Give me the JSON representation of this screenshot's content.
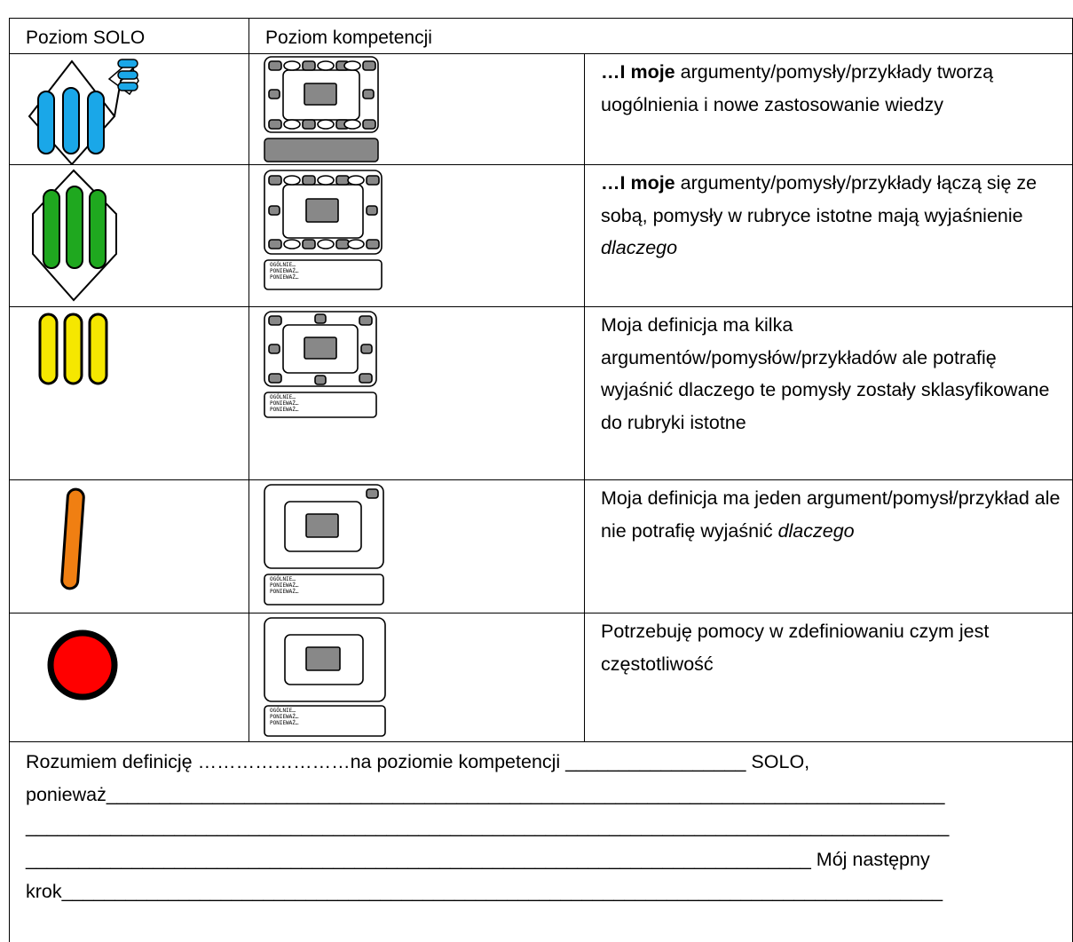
{
  "header": {
    "solo_level": "Poziom SOLO",
    "competence_level": "Poziom kompetencji"
  },
  "rows": [
    {
      "description": [
        "…I moje",
        " argumenty/pomysły/przykłady tworzą uogólnienia i nowe zastosowanie wiedzy"
      ]
    },
    {
      "description": [
        "…I moje",
        " argumenty/pomysły/przykłady łączą się ze sobą, pomysły w rubryce istotne mają wyjaśnienie ",
        "dlaczego"
      ],
      "sketch_notes": [
        "OGÓLNIE…",
        "PONIEWAŻ…",
        "PONIEWAŻ…"
      ]
    },
    {
      "description": [
        "Moja definicja ma kilka argumentów/pomysłów/przykładów ale potrafię wyjaśnić dlaczego te pomysły zostały sklasyfikowane do rubryki istotne"
      ],
      "sketch_notes": [
        "OGÓLNIE…",
        "PONIEWAŻ…",
        "PONIEWAŻ…"
      ]
    },
    {
      "description": [
        "Moja definicja ma jeden argument/pomysł/przykład ale nie potrafię wyjaśnić ",
        "dlaczego"
      ],
      "sketch_notes": [
        "OGÓLNIE…",
        "PONIEWAŻ…",
        "PONIEWAŻ…"
      ]
    },
    {
      "description": [
        "Potrzebuję pomocy w zdefiniowaniu czym jest częstotliwość"
      ],
      "sketch_notes": [
        "OGÓLNIE…",
        "PONIEWAŻ…",
        "PONIEWAŻ…"
      ]
    }
  ],
  "footer": {
    "lines": [
      "Rozumiem definicję ……………………na poziomie kompetencji _________________ SOLO,",
      "ponieważ_______________________________________________________________________________",
      "_______________________________________________________________________________________",
      "__________________________________________________________________________ Mój następny",
      "krok___________________________________________________________________________________"
    ]
  }
}
